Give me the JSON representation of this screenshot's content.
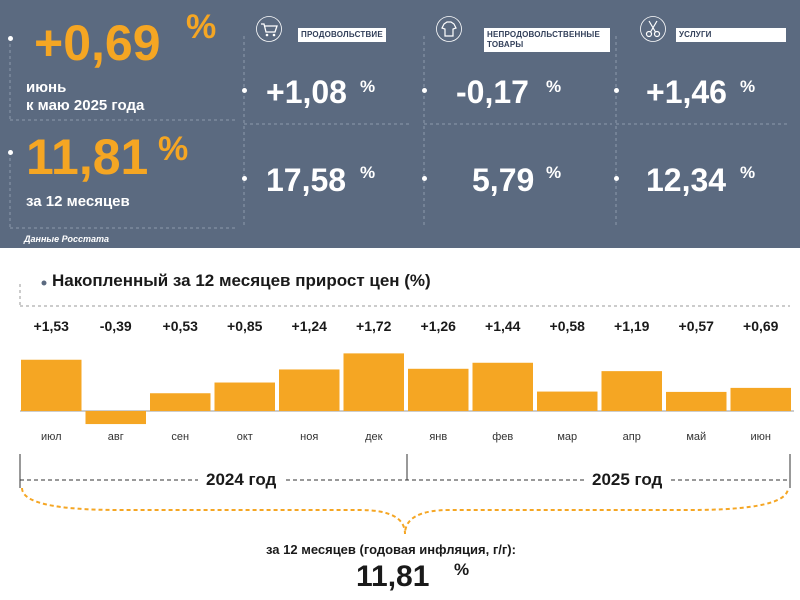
{
  "header": {
    "monthly_value": "+0,69",
    "monthly_pct": "%",
    "monthly_line1": "июнь",
    "monthly_line2": "к маю 2025 года",
    "annual_value": "11,81",
    "annual_pct": "%",
    "annual_label": "за 12 месяцев",
    "source": "Данные Росстата"
  },
  "categories": [
    {
      "label": "ПРОДОВОЛЬСТВИЕ",
      "icon": "shopping-cart-icon",
      "monthly": "+1,08",
      "annual": "17,58",
      "pct": "%"
    },
    {
      "label": "НЕПРОДОВОЛЬСТВЕННЫЕ ТОВАРЫ",
      "icon": "clothing-icon",
      "monthly": "-0,17",
      "annual": "5,79",
      "pct": "%"
    },
    {
      "label": "УСЛУГИ",
      "icon": "scissors-icon",
      "monthly": "+1,46",
      "annual": "12,34",
      "pct": "%"
    }
  ],
  "colors": {
    "panel": "#5b6a80",
    "accent": "#f5a623",
    "bar": "#f5a623"
  },
  "chart_data": {
    "type": "bar",
    "title": "Накопленный за 12 месяцев прирост цен (%)",
    "categories": [
      "июл",
      "авг",
      "сен",
      "окт",
      "ноя",
      "дек",
      "янв",
      "фев",
      "мар",
      "апр",
      "май",
      "июн"
    ],
    "values": [
      1.53,
      -0.39,
      0.53,
      0.85,
      1.24,
      1.72,
      1.26,
      1.44,
      0.58,
      1.19,
      0.57,
      0.69
    ],
    "value_labels": [
      "+1,53",
      "-0,39",
      "+0,53",
      "+0,85",
      "+1,24",
      "+1,72",
      "+1,26",
      "+1,44",
      "+0,58",
      "+1,19",
      "+0,57",
      "+0,69"
    ],
    "years": [
      "2024 год",
      "2025 год"
    ],
    "ylim": [
      -0.39,
      1.72
    ],
    "grid": false
  },
  "footer": {
    "label": "за 12 месяцев (годовая инфляция, г/г):",
    "value": "11,81",
    "pct": "%"
  }
}
